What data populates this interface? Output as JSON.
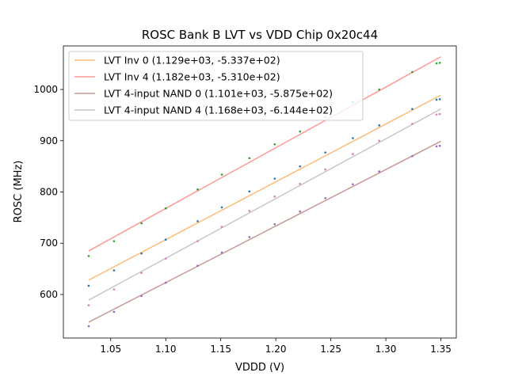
{
  "chart_data": {
    "type": "scatter",
    "title": "ROSC Bank B LVT vs VDD Chip 0x20c44",
    "xlabel": "VDDD (V)",
    "ylabel": "ROSC (MHz)",
    "xlim": [
      1.007,
      1.364
    ],
    "ylim": [
      515,
      1085
    ],
    "xticks": [
      "1.05",
      "1.10",
      "1.15",
      "1.20",
      "1.25",
      "1.30",
      "1.35"
    ],
    "yticks": [
      "600",
      "700",
      "800",
      "900",
      "1000"
    ],
    "legend_position": "top-left",
    "grid": false,
    "fit_lines": [
      {
        "label": "LVT Inv 0 (1.129e+03, -5.337e+02)",
        "color": "#ffbb78",
        "x": [
          1.03,
          1.35
        ],
        "y": [
          628,
          989
        ]
      },
      {
        "label": "LVT Inv 4 (1.182e+03, -5.310e+02)",
        "color": "#ff9896",
        "x": [
          1.03,
          1.35
        ],
        "y": [
          685,
          1064
        ]
      },
      {
        "label": "LVT 4-input NAND 0 (1.101e+03, -5.875e+02)",
        "color": "#c49c94",
        "x": [
          1.03,
          1.35
        ],
        "y": [
          546,
          899
        ]
      },
      {
        "label": "LVT 4-input NAND 4 (1.168e+03, -6.144e+02)",
        "color": "#c7c7c7",
        "x": [
          1.03,
          1.35
        ],
        "y": [
          589,
          962
        ]
      }
    ],
    "scatter_series": [
      {
        "color": "#1f77b4",
        "x": [
          1.03,
          1.053,
          1.078,
          1.1,
          1.129,
          1.151,
          1.176,
          1.199,
          1.222,
          1.245,
          1.27,
          1.294,
          1.324,
          1.346,
          1.349
        ],
        "y": [
          617,
          647,
          680,
          707,
          743,
          770,
          801,
          826,
          850,
          877,
          905,
          930,
          962,
          980,
          981
        ]
      },
      {
        "color": "#2ca02c",
        "x": [
          1.03,
          1.053,
          1.078,
          1.1,
          1.129,
          1.151,
          1.176,
          1.199,
          1.222,
          1.245,
          1.27,
          1.294,
          1.324,
          1.346,
          1.349
        ],
        "y": [
          675,
          704,
          739,
          768,
          805,
          834,
          866,
          893,
          918,
          946,
          975,
          1000,
          1034,
          1051,
          1052
        ]
      },
      {
        "color": "#e377c2",
        "x": [
          1.03,
          1.053,
          1.078,
          1.1,
          1.129,
          1.151,
          1.176,
          1.199,
          1.222,
          1.245,
          1.27,
          1.294,
          1.324,
          1.346,
          1.349
        ],
        "y": [
          579,
          610,
          642,
          670,
          704,
          732,
          763,
          791,
          816,
          844,
          874,
          900,
          933,
          951,
          952
        ]
      },
      {
        "color": "#9467bd",
        "x": [
          1.03,
          1.053,
          1.078,
          1.1,
          1.129,
          1.151,
          1.176,
          1.199,
          1.222,
          1.245,
          1.27,
          1.294,
          1.324,
          1.346,
          1.349
        ],
        "y": [
          538,
          566,
          597,
          623,
          656,
          682,
          712,
          737,
          762,
          788,
          815,
          840,
          870,
          889,
          890
        ]
      }
    ]
  }
}
